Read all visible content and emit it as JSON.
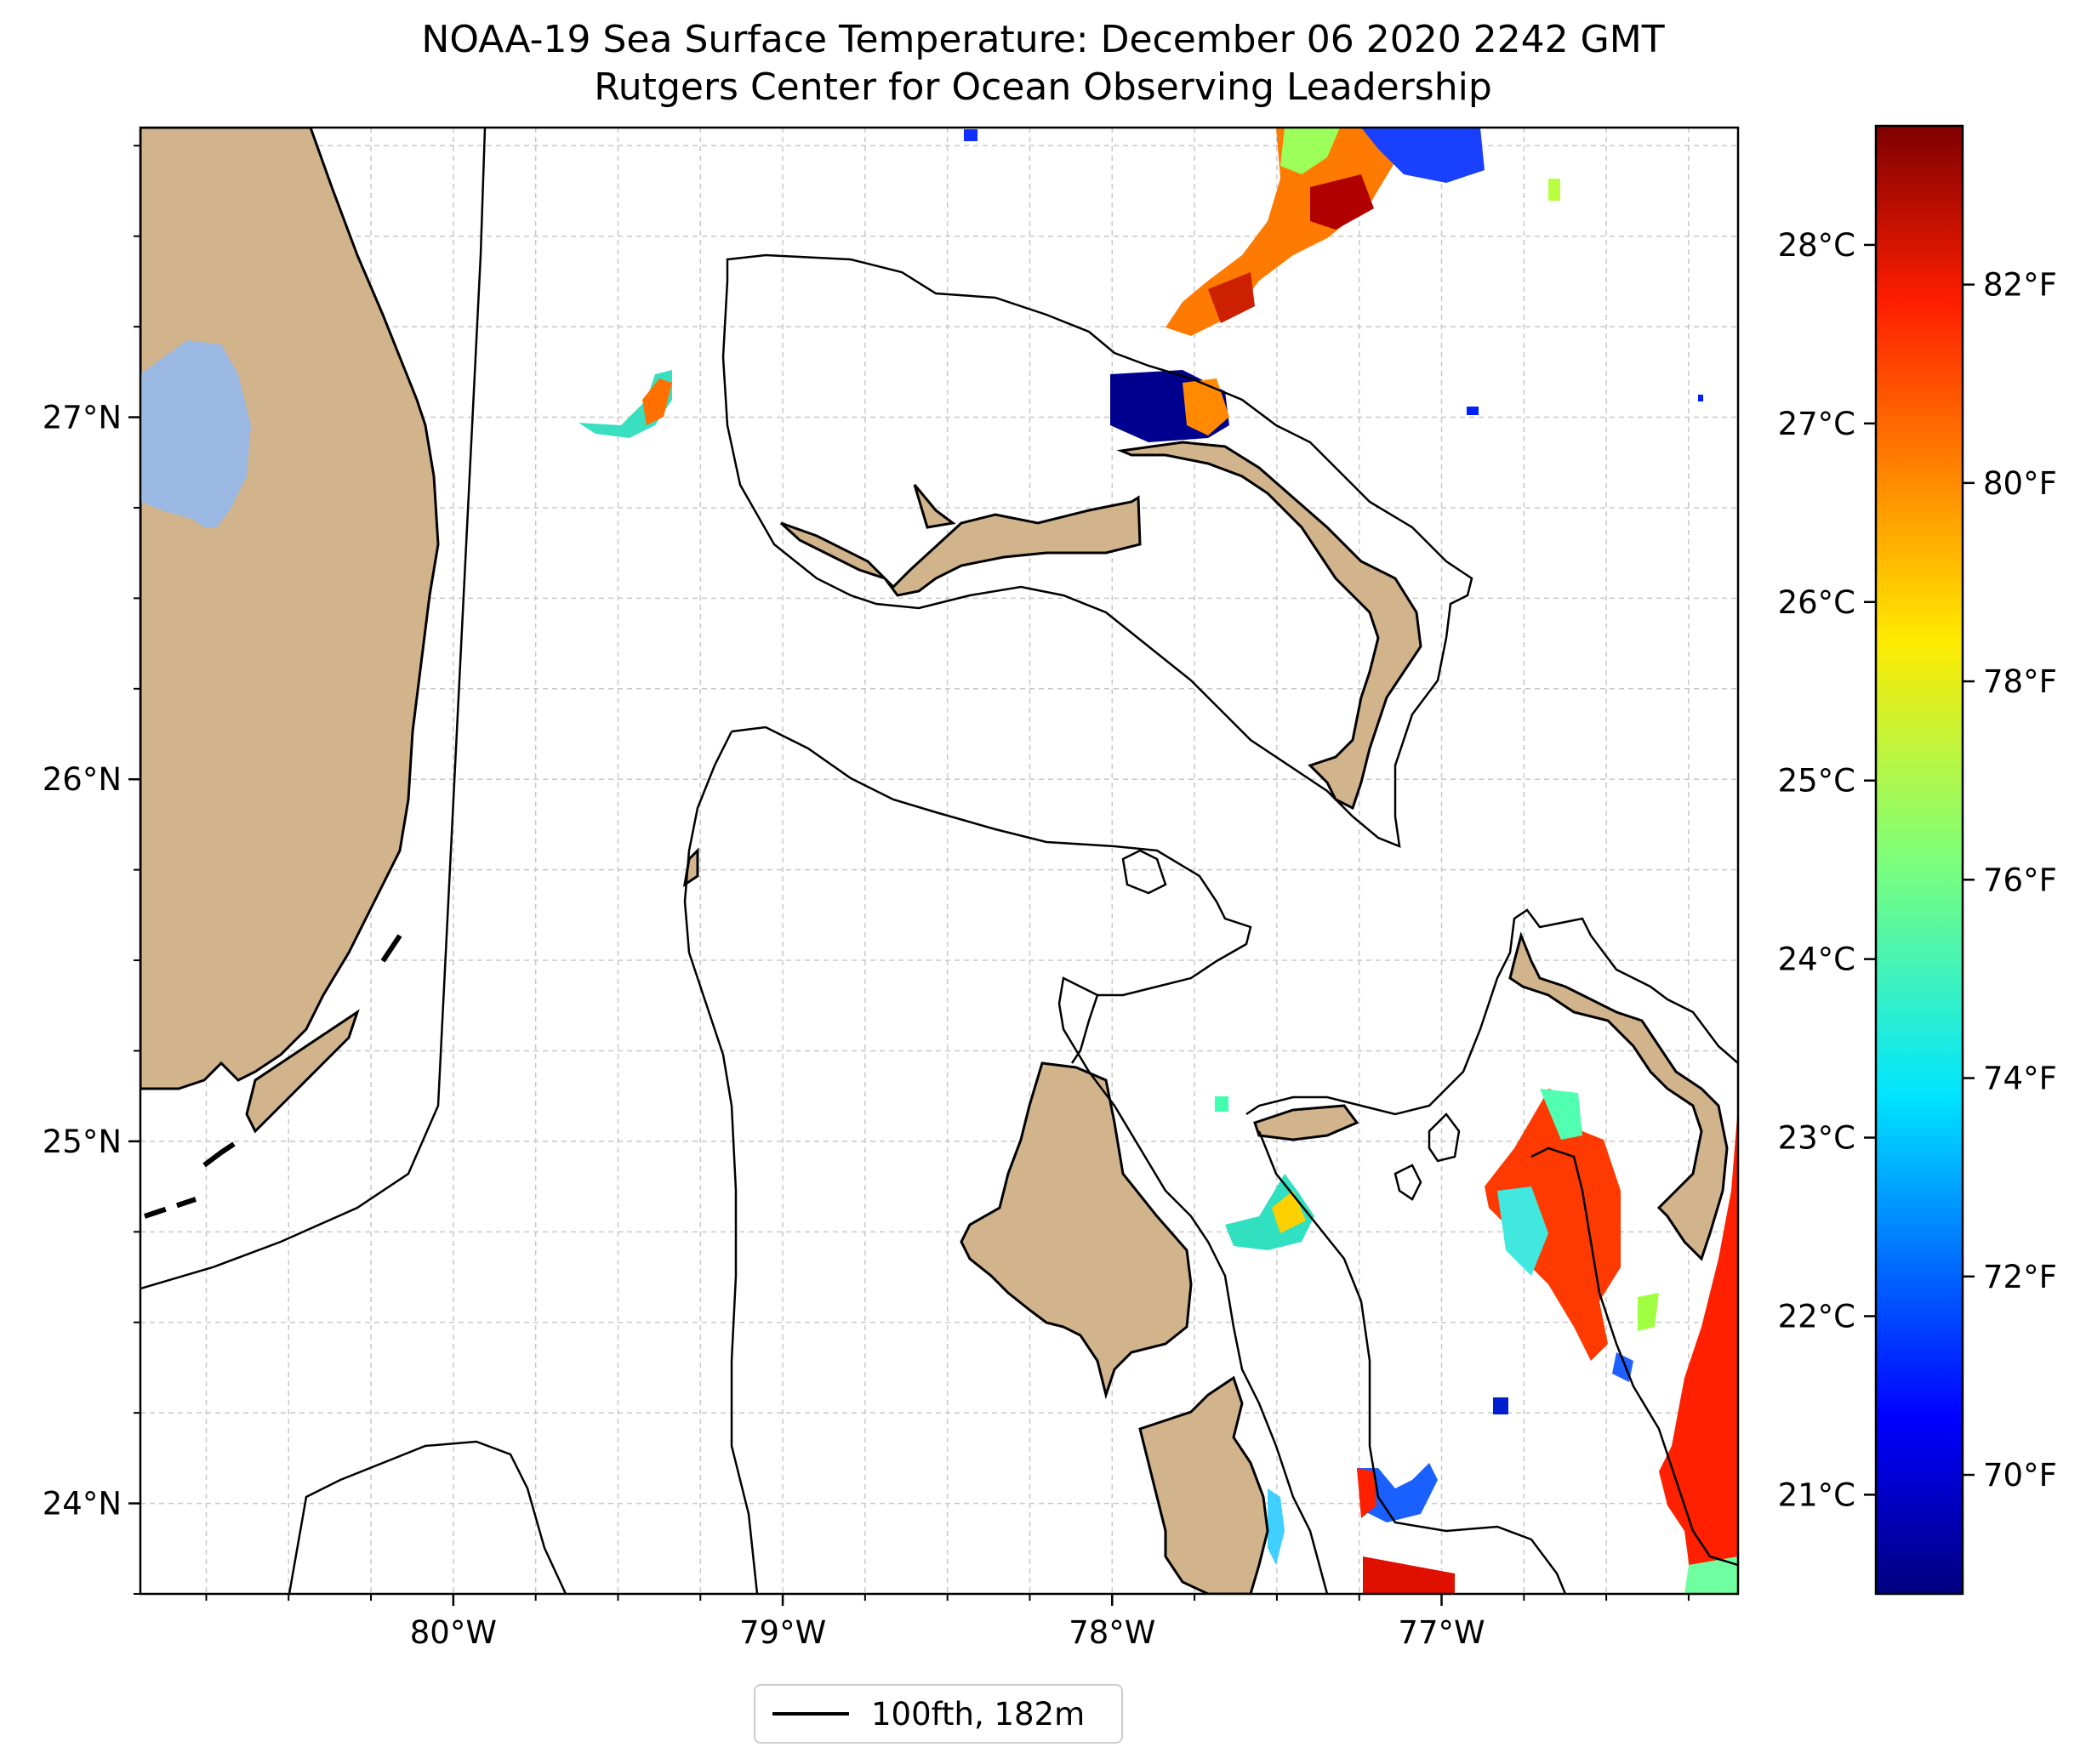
{
  "title": {
    "line1": "NOAA-19 Sea Surface Temperature: December 06 2020 2242 GMT",
    "line2": "Rutgers Center for Ocean Observing Leadership"
  },
  "map": {
    "lon_range": [
      -80.95,
      -76.1
    ],
    "lat_range": [
      23.75,
      27.8
    ],
    "lon_ticks": [
      {
        "lon": -80,
        "label": "80°W"
      },
      {
        "lon": -79,
        "label": "79°W"
      },
      {
        "lon": -78,
        "label": "78°W"
      },
      {
        "lon": -77,
        "label": "77°W"
      }
    ],
    "lat_ticks": [
      {
        "lat": 24,
        "label": "24°N"
      },
      {
        "lat": 25,
        "label": "25°N"
      },
      {
        "lat": 26,
        "label": "26°N"
      },
      {
        "lat": 27,
        "label": "27°N"
      }
    ],
    "grid": true,
    "colors": {
      "land": "#d2b48c",
      "lake": "#9bb8e3",
      "coast": "#000000"
    }
  },
  "colorbar": {
    "range_f": [
      68.8,
      83.6
    ],
    "celsius_ticks": [
      {
        "value": 21,
        "label": "21°C"
      },
      {
        "value": 22,
        "label": "22°C"
      },
      {
        "value": 23,
        "label": "23°C"
      },
      {
        "value": 24,
        "label": "24°C"
      },
      {
        "value": 25,
        "label": "25°C"
      },
      {
        "value": 26,
        "label": "26°C"
      },
      {
        "value": 27,
        "label": "27°C"
      },
      {
        "value": 28,
        "label": "28°C"
      }
    ],
    "fahrenheit_ticks": [
      {
        "value": 70,
        "label": "70°F"
      },
      {
        "value": 72,
        "label": "72°F"
      },
      {
        "value": 74,
        "label": "74°F"
      },
      {
        "value": 76,
        "label": "76°F"
      },
      {
        "value": 78,
        "label": "78°F"
      },
      {
        "value": 80,
        "label": "80°F"
      },
      {
        "value": 82,
        "label": "82°F"
      }
    ],
    "colormap": "jet"
  },
  "legend": {
    "label": "100fth, 182m"
  }
}
